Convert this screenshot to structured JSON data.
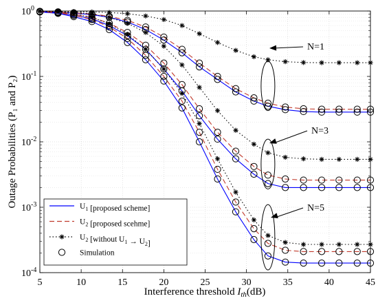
{
  "chart_data": {
    "type": "line",
    "title": "",
    "xlabel": "Interference threshold ",
    "xlabel_var": "I",
    "xlabel_sub": "th",
    "xlabel_unit": "(dB)",
    "ylabel": "Outage Probabilities (P₁ and P₂)",
    "xlim": [
      5,
      45
    ],
    "ylim": [
      0.0001,
      1
    ],
    "yscale": "log",
    "grid": true,
    "xticks": [
      "5",
      "10",
      "15",
      "20",
      "25",
      "30",
      "35",
      "40",
      "45"
    ],
    "yticks": [
      {
        "base": "10",
        "exp": "0",
        "value": 1
      },
      {
        "base": "10",
        "exp": "-1",
        "value": 0.1
      },
      {
        "base": "10",
        "exp": "-2",
        "value": 0.01
      },
      {
        "base": "10",
        "exp": "-3",
        "value": 0.001
      },
      {
        "base": "10",
        "exp": "-4",
        "value": 0.0001
      }
    ],
    "legend": {
      "placement": "bottom-left",
      "entries": [
        {
          "label_pre": "U",
          "label_sub": "1",
          "label_post": " [proposed scheme]"
        },
        {
          "label_pre": "U",
          "label_sub": "2",
          "label_post": " [proposed scehme]"
        },
        {
          "label_pre": "U",
          "label_sub": "2",
          "label_post": " [without U",
          "label_sub2": "1",
          "label_post2": " → U",
          "label_sub3": "2",
          "label_post3": "]"
        },
        {
          "label_pre": "Simulation",
          "label_sub": "",
          "label_post": ""
        }
      ]
    },
    "annotations": [
      "N=1",
      "N=3",
      "N=5"
    ],
    "colors": {
      "u1": "#0000ff",
      "u2": "#c0392b",
      "without": "#000000",
      "sim": "#000000"
    },
    "x": [
      5,
      7.2,
      9.1,
      11.3,
      13.4,
      15.6,
      17.8,
      20,
      22.2,
      24.3,
      26.5,
      28.7,
      30.9,
      32.6,
      34.7,
      36.9,
      39.1,
      41.2,
      43.4,
      45
    ],
    "series": [
      {
        "group": "N=1",
        "name": "U1 [proposed scheme]",
        "style": "u1",
        "values": [
          0.98,
          0.96,
          0.93,
          0.88,
          0.8,
          0.68,
          0.52,
          0.36,
          0.23,
          0.14,
          0.09,
          0.058,
          0.042,
          0.035,
          0.031,
          0.029,
          0.0285,
          0.0285,
          0.0285,
          0.0285
        ]
      },
      {
        "group": "N=1",
        "name": "U2 [proposed scehme]",
        "style": "u2",
        "values": [
          0.99,
          0.97,
          0.94,
          0.9,
          0.83,
          0.72,
          0.57,
          0.4,
          0.26,
          0.16,
          0.1,
          0.065,
          0.047,
          0.039,
          0.034,
          0.032,
          0.0315,
          0.0315,
          0.0315,
          0.0315
        ]
      },
      {
        "group": "N=1",
        "name": "U2 [without U1 → U2]",
        "style": "without",
        "values": [
          1.0,
          0.99,
          0.98,
          0.97,
          0.95,
          0.91,
          0.84,
          0.74,
          0.6,
          0.45,
          0.33,
          0.25,
          0.2,
          0.18,
          0.168,
          0.163,
          0.162,
          0.162,
          0.162,
          0.162
        ]
      },
      {
        "group": "N=3",
        "name": "U1 [proposed scheme]",
        "style": "u1",
        "values": [
          0.97,
          0.93,
          0.86,
          0.76,
          0.6,
          0.42,
          0.26,
          0.13,
          0.06,
          0.025,
          0.011,
          0.0055,
          0.0032,
          0.0023,
          0.002,
          0.002,
          0.002,
          0.002,
          0.002,
          0.002
        ]
      },
      {
        "group": "N=3",
        "name": "U2 [proposed scehme]",
        "style": "u2",
        "values": [
          0.98,
          0.95,
          0.89,
          0.8,
          0.65,
          0.47,
          0.3,
          0.16,
          0.075,
          0.032,
          0.014,
          0.0072,
          0.0042,
          0.0031,
          0.0027,
          0.0026,
          0.0026,
          0.0026,
          0.0026,
          0.0026
        ]
      },
      {
        "group": "N=3",
        "name": "U2 [without U1 → U2]",
        "style": "without",
        "values": [
          0.99,
          0.98,
          0.95,
          0.9,
          0.8,
          0.65,
          0.47,
          0.29,
          0.15,
          0.068,
          0.03,
          0.015,
          0.0092,
          0.0068,
          0.0058,
          0.0055,
          0.0054,
          0.0054,
          0.0054,
          0.0054
        ]
      },
      {
        "group": "N=5",
        "name": "U1 [proposed scheme]",
        "style": "u1",
        "values": [
          0.97,
          0.92,
          0.82,
          0.69,
          0.52,
          0.33,
          0.18,
          0.085,
          0.033,
          0.01,
          0.0027,
          0.00085,
          0.00032,
          0.00018,
          0.000145,
          0.00014,
          0.00014,
          0.00014,
          0.00014,
          0.00014
        ]
      },
      {
        "group": "N=5",
        "name": "U2 [proposed scehme]",
        "style": "u2",
        "values": [
          0.98,
          0.94,
          0.86,
          0.74,
          0.57,
          0.38,
          0.21,
          0.1,
          0.042,
          0.014,
          0.0038,
          0.0012,
          0.00047,
          0.00028,
          0.00022,
          0.00021,
          0.00021,
          0.00021,
          0.00021,
          0.00021
        ]
      },
      {
        "group": "N=5",
        "name": "U2 [without U1 → U2]",
        "style": "without",
        "values": [
          0.99,
          0.97,
          0.9,
          0.8,
          0.64,
          0.44,
          0.26,
          0.13,
          0.055,
          0.019,
          0.0055,
          0.0017,
          0.00064,
          0.00037,
          0.00029,
          0.00027,
          0.00027,
          0.00027,
          0.00027,
          0.00027
        ]
      }
    ],
    "simulation_points": [
      {
        "group": "N=1",
        "style": "u1",
        "x": [
          5,
          7.2,
          9.1,
          11.3,
          13.4,
          15.6,
          17.8,
          20,
          22.2,
          24.3,
          26.5,
          28.7,
          30.9,
          32.6,
          34.7,
          36.9,
          39.1,
          41.2,
          43.4,
          45
        ]
      },
      {
        "group": "N=3",
        "style": "u1",
        "x": [
          5,
          7.2,
          9.1,
          11.3,
          13.4,
          15.6,
          17.8,
          20,
          22.2,
          24.3,
          26.5,
          28.7,
          30.9,
          32.6,
          34.7,
          36.9,
          39.1,
          41.2,
          43.4,
          45
        ]
      },
      {
        "group": "N=5",
        "style": "u1",
        "x": [
          5,
          7.2,
          9.1,
          11.3,
          13.4,
          15.6,
          17.8,
          20,
          22.2,
          24.3,
          26.5,
          28.7,
          30.9,
          32.6,
          34.7,
          36.9,
          39.1,
          41.2,
          43.4,
          45
        ]
      }
    ]
  }
}
